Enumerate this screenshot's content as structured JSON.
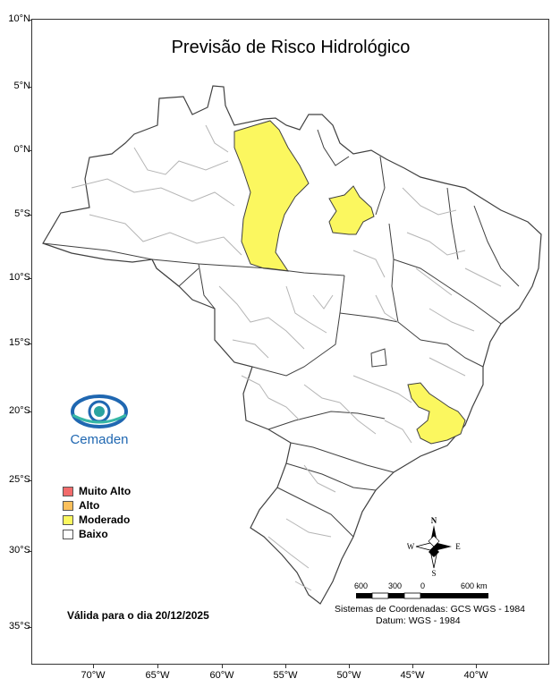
{
  "title": "Previsão de Risco Hidrológico",
  "lat_labels": [
    "10°N",
    "5°N",
    "0°N",
    "5°S",
    "10°S",
    "15°S",
    "20°S",
    "25°S",
    "30°S",
    "35°S"
  ],
  "lon_labels": [
    "70°W",
    "65°W",
    "60°W",
    "55°W",
    "50°W",
    "45°W",
    "40°W"
  ],
  "logo": {
    "text": "Cemaden"
  },
  "legend": [
    {
      "label": "Muito Alto",
      "color": "#f26b6b"
    },
    {
      "label": "Alto",
      "color": "#fbc05c"
    },
    {
      "label": "Moderado",
      "color": "#fbf75f"
    },
    {
      "label": "Baixo",
      "color": "#ffffff"
    }
  ],
  "valid_text": "Válida para o dia 20/12/2025",
  "compass": {
    "n": "N",
    "s": "S",
    "e": "E",
    "w": "W"
  },
  "scale": {
    "l600": "600",
    "l300": "300",
    "l0": "0",
    "l600km": "600 km"
  },
  "coord_system": "Sistemas de Coordenadas: GCS WGS - 1984",
  "datum": "Datum: WGS - 1984",
  "colors": {
    "moderado": "#fbf75f",
    "border_states": "#404040",
    "border_basins": "#b5b5b5"
  }
}
